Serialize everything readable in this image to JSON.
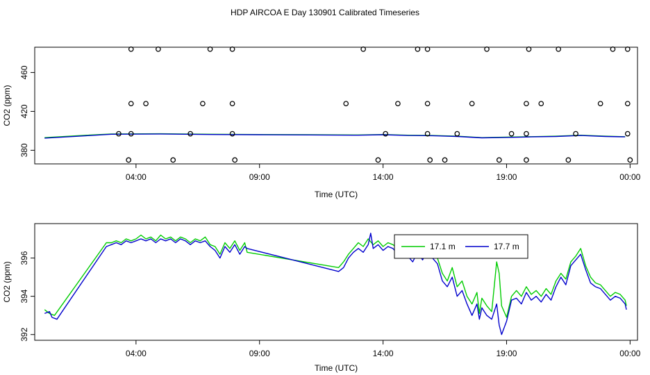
{
  "page": {
    "title": "HDP AIRCOA E  Day 130901  Calibrated Timeseries"
  },
  "chart_data": [
    {
      "type": "scatter",
      "xlabel": "Time (UTC)",
      "ylabel": "CO2 (ppm)",
      "x_tick_labels": [
        "04:00",
        "09:00",
        "14:00",
        "19:00",
        "00:00"
      ],
      "x_tick_hours": [
        4,
        9,
        14,
        19,
        24
      ],
      "y_ticks": [
        380,
        420,
        460
      ],
      "xlim": [
        -0.1,
        24.3
      ],
      "ylim": [
        366,
        486
      ],
      "colors": {
        "green": "#00cc00",
        "blue": "#0000cc"
      },
      "series": [
        {
          "values": [
            [
              0.3,
              393
            ],
            [
              2,
              395.5
            ],
            [
              3,
              396.8
            ],
            [
              5,
              397
            ],
            [
              7,
              396.5
            ],
            [
              9,
              396.2
            ],
            [
              11,
              396
            ],
            [
              13,
              395.8
            ],
            [
              14,
              396.2
            ],
            [
              15,
              395.5
            ],
            [
              16,
              395.2
            ],
            [
              17,
              394.5
            ],
            [
              18,
              393
            ],
            [
              19,
              393.5
            ],
            [
              20,
              394
            ],
            [
              21,
              394.5
            ],
            [
              22,
              395.5
            ],
            [
              23,
              394.5
            ],
            [
              23.8,
              394
            ]
          ]
        },
        {
          "values": [
            [
              0.3,
              392.5
            ],
            [
              2,
              395
            ],
            [
              3,
              396.5
            ],
            [
              5,
              396.8
            ],
            [
              7,
              396.2
            ],
            [
              9,
              396
            ],
            [
              11,
              395.8
            ],
            [
              13,
              395.5
            ],
            [
              14,
              396
            ],
            [
              15,
              395.2
            ],
            [
              16,
              395
            ],
            [
              17,
              394.2
            ],
            [
              18,
              392.8
            ],
            [
              19,
              393.2
            ],
            [
              20,
              393.8
            ],
            [
              21,
              394.2
            ],
            [
              22,
              395.2
            ],
            [
              23,
              394.2
            ],
            [
              23.8,
              393.8
            ]
          ]
        }
      ],
      "markers": [
        [
          3.3,
          397
        ],
        [
          3.8,
          397
        ],
        [
          6.2,
          397
        ],
        [
          7.9,
          397
        ],
        [
          14.1,
          397
        ],
        [
          15.8,
          397
        ],
        [
          17,
          397
        ],
        [
          19.2,
          397
        ],
        [
          19.8,
          397
        ],
        [
          21.8,
          397
        ],
        [
          23.9,
          397
        ],
        [
          3.8,
          428
        ],
        [
          4.4,
          428
        ],
        [
          6.7,
          428
        ],
        [
          7.9,
          428
        ],
        [
          12.5,
          428
        ],
        [
          14.6,
          428
        ],
        [
          15.8,
          428
        ],
        [
          17.6,
          428
        ],
        [
          19.8,
          428
        ],
        [
          20.4,
          428
        ],
        [
          22.8,
          428
        ],
        [
          23.9,
          428
        ],
        [
          3.8,
          484
        ],
        [
          4.9,
          484
        ],
        [
          7,
          484
        ],
        [
          7.9,
          484
        ],
        [
          13.2,
          484
        ],
        [
          15.4,
          484
        ],
        [
          15.8,
          484
        ],
        [
          18.2,
          484
        ],
        [
          19.9,
          484
        ],
        [
          21.1,
          484
        ],
        [
          23.3,
          484
        ],
        [
          23.9,
          484
        ],
        [
          3.7,
          370
        ],
        [
          5.5,
          370
        ],
        [
          8,
          370
        ],
        [
          13.8,
          370
        ],
        [
          15.9,
          370
        ],
        [
          16.5,
          370
        ],
        [
          18.7,
          370
        ],
        [
          19.8,
          370
        ],
        [
          21.5,
          370
        ],
        [
          24,
          370
        ]
      ]
    },
    {
      "type": "line",
      "xlabel": "Time (UTC)",
      "ylabel": "CO2 (ppm)",
      "x_tick_labels": [
        "04:00",
        "09:00",
        "14:00",
        "19:00",
        "00:00"
      ],
      "x_tick_hours": [
        4,
        9,
        14,
        19,
        24
      ],
      "y_ticks": [
        392,
        394,
        396
      ],
      "xlim": [
        -0.1,
        24.3
      ],
      "ylim": [
        391.7,
        397.8
      ],
      "legend": {
        "placement": "top-center",
        "entries": [
          "17.1 m",
          "17.7 m"
        ]
      },
      "colors": {
        "green": "#00cc00",
        "blue": "#0000cc"
      },
      "series": [
        {
          "name": "17.1 m",
          "color": "#00cc00",
          "values": [
            [
              0.3,
              393.3
            ],
            [
              0.5,
              393.1
            ],
            [
              0.7,
              393.0
            ],
            [
              2.8,
              396.8
            ],
            [
              3.0,
              396.8
            ],
            [
              3.2,
              396.9
            ],
            [
              3.4,
              396.8
            ],
            [
              3.6,
              397.0
            ],
            [
              3.8,
              396.9
            ],
            [
              4.0,
              397.0
            ],
            [
              4.2,
              397.2
            ],
            [
              4.4,
              397.0
            ],
            [
              4.6,
              397.1
            ],
            [
              4.8,
              396.9
            ],
            [
              5.0,
              397.2
            ],
            [
              5.2,
              397.0
            ],
            [
              5.4,
              397.1
            ],
            [
              5.6,
              396.9
            ],
            [
              5.8,
              397.1
            ],
            [
              6.0,
              397.0
            ],
            [
              6.2,
              396.8
            ],
            [
              6.4,
              397.0
            ],
            [
              6.6,
              396.9
            ],
            [
              6.8,
              397.1
            ],
            [
              7.0,
              396.7
            ],
            [
              7.2,
              396.6
            ],
            [
              7.4,
              396.2
            ],
            [
              7.6,
              396.8
            ],
            [
              7.8,
              396.5
            ],
            [
              8.0,
              396.9
            ],
            [
              8.2,
              396.4
            ],
            [
              8.4,
              396.8
            ],
            [
              8.5,
              396.3
            ],
            [
              12.2,
              395.5
            ],
            [
              12.4,
              395.8
            ],
            [
              12.6,
              396.2
            ],
            [
              12.8,
              396.5
            ],
            [
              13.0,
              396.8
            ],
            [
              13.2,
              396.6
            ],
            [
              13.4,
              397.0
            ],
            [
              13.6,
              396.7
            ],
            [
              13.8,
              396.9
            ],
            [
              14.0,
              396.6
            ],
            [
              14.2,
              396.8
            ],
            [
              14.4,
              396.7
            ],
            [
              14.6,
              396.5
            ],
            [
              14.8,
              396.8
            ],
            [
              15.0,
              396.3
            ],
            [
              15.2,
              396.0
            ],
            [
              15.4,
              396.5
            ],
            [
              15.6,
              396.1
            ],
            [
              15.8,
              396.6
            ],
            [
              16.0,
              396.3
            ],
            [
              16.2,
              396.0
            ],
            [
              16.4,
              395.2
            ],
            [
              16.6,
              394.8
            ],
            [
              16.8,
              395.5
            ],
            [
              17.0,
              394.5
            ],
            [
              17.2,
              394.8
            ],
            [
              17.4,
              394.0
            ],
            [
              17.6,
              393.6
            ],
            [
              17.8,
              394.2
            ],
            [
              17.9,
              393.1
            ],
            [
              18.0,
              393.9
            ],
            [
              18.2,
              393.5
            ],
            [
              18.4,
              393.2
            ],
            [
              18.6,
              395.8
            ],
            [
              18.7,
              395.2
            ],
            [
              18.8,
              393.5
            ],
            [
              19.0,
              392.9
            ],
            [
              19.2,
              394.0
            ],
            [
              19.4,
              394.3
            ],
            [
              19.6,
              394.0
            ],
            [
              19.8,
              394.5
            ],
            [
              20.0,
              394.1
            ],
            [
              20.2,
              394.3
            ],
            [
              20.4,
              394.0
            ],
            [
              20.6,
              394.4
            ],
            [
              20.8,
              394.1
            ],
            [
              21.0,
              394.8
            ],
            [
              21.2,
              395.2
            ],
            [
              21.4,
              394.9
            ],
            [
              21.6,
              395.8
            ],
            [
              21.8,
              396.1
            ],
            [
              22.0,
              396.5
            ],
            [
              22.2,
              395.6
            ],
            [
              22.4,
              395.0
            ],
            [
              22.6,
              394.7
            ],
            [
              22.8,
              394.6
            ],
            [
              23.0,
              394.3
            ],
            [
              23.2,
              394.0
            ],
            [
              23.4,
              394.2
            ],
            [
              23.6,
              394.1
            ],
            [
              23.8,
              393.8
            ],
            [
              23.85,
              393.5
            ]
          ]
        },
        {
          "name": "17.7 m",
          "color": "#0000cc",
          "values": [
            [
              0.3,
              393.1
            ],
            [
              0.5,
              393.2
            ],
            [
              0.6,
              392.9
            ],
            [
              0.8,
              392.8
            ],
            [
              2.8,
              396.6
            ],
            [
              3.0,
              396.7
            ],
            [
              3.2,
              396.8
            ],
            [
              3.4,
              396.7
            ],
            [
              3.6,
              396.9
            ],
            [
              3.8,
              396.8
            ],
            [
              4.0,
              396.9
            ],
            [
              4.2,
              397.0
            ],
            [
              4.4,
              396.9
            ],
            [
              4.6,
              397.0
            ],
            [
              4.8,
              396.8
            ],
            [
              5.0,
              397.0
            ],
            [
              5.2,
              396.9
            ],
            [
              5.4,
              397.0
            ],
            [
              5.6,
              396.8
            ],
            [
              5.8,
              397.0
            ],
            [
              6.0,
              396.9
            ],
            [
              6.2,
              396.7
            ],
            [
              6.4,
              396.9
            ],
            [
              6.6,
              396.8
            ],
            [
              6.8,
              396.9
            ],
            [
              7.0,
              396.6
            ],
            [
              7.2,
              396.4
            ],
            [
              7.4,
              396.0
            ],
            [
              7.6,
              396.6
            ],
            [
              7.8,
              396.3
            ],
            [
              8.0,
              396.7
            ],
            [
              8.2,
              396.2
            ],
            [
              8.4,
              396.6
            ],
            [
              8.5,
              396.5
            ],
            [
              12.2,
              395.3
            ],
            [
              12.4,
              395.5
            ],
            [
              12.6,
              396.0
            ],
            [
              12.8,
              396.3
            ],
            [
              13.0,
              396.5
            ],
            [
              13.2,
              396.3
            ],
            [
              13.4,
              396.7
            ],
            [
              13.5,
              397.3
            ],
            [
              13.6,
              396.5
            ],
            [
              13.8,
              396.7
            ],
            [
              14.0,
              396.4
            ],
            [
              14.2,
              396.6
            ],
            [
              14.4,
              396.5
            ],
            [
              14.6,
              396.2
            ],
            [
              14.8,
              396.5
            ],
            [
              15.0,
              396.1
            ],
            [
              15.2,
              395.8
            ],
            [
              15.4,
              396.3
            ],
            [
              15.6,
              395.9
            ],
            [
              15.8,
              396.4
            ],
            [
              16.0,
              396.0
            ],
            [
              16.2,
              395.7
            ],
            [
              16.4,
              394.8
            ],
            [
              16.6,
              394.5
            ],
            [
              16.8,
              395.0
            ],
            [
              17.0,
              394.0
            ],
            [
              17.2,
              394.3
            ],
            [
              17.4,
              393.6
            ],
            [
              17.6,
              393.0
            ],
            [
              17.8,
              393.6
            ],
            [
              17.9,
              392.8
            ],
            [
              18.0,
              393.4
            ],
            [
              18.2,
              393.0
            ],
            [
              18.4,
              392.8
            ],
            [
              18.6,
              393.6
            ],
            [
              18.7,
              392.5
            ],
            [
              18.8,
              392.0
            ],
            [
              19.0,
              392.7
            ],
            [
              19.2,
              393.8
            ],
            [
              19.4,
              393.9
            ],
            [
              19.6,
              393.6
            ],
            [
              19.8,
              394.2
            ],
            [
              20.0,
              393.8
            ],
            [
              20.2,
              394.0
            ],
            [
              20.4,
              393.7
            ],
            [
              20.6,
              394.1
            ],
            [
              20.8,
              393.8
            ],
            [
              21.0,
              394.5
            ],
            [
              21.2,
              395.0
            ],
            [
              21.4,
              394.6
            ],
            [
              21.6,
              395.6
            ],
            [
              21.8,
              395.9
            ],
            [
              22.0,
              396.2
            ],
            [
              22.2,
              395.4
            ],
            [
              22.4,
              394.7
            ],
            [
              22.6,
              394.5
            ],
            [
              22.8,
              394.4
            ],
            [
              23.0,
              394.1
            ],
            [
              23.2,
              393.8
            ],
            [
              23.4,
              394.0
            ],
            [
              23.6,
              393.9
            ],
            [
              23.8,
              393.6
            ],
            [
              23.85,
              393.3
            ]
          ]
        }
      ]
    }
  ]
}
